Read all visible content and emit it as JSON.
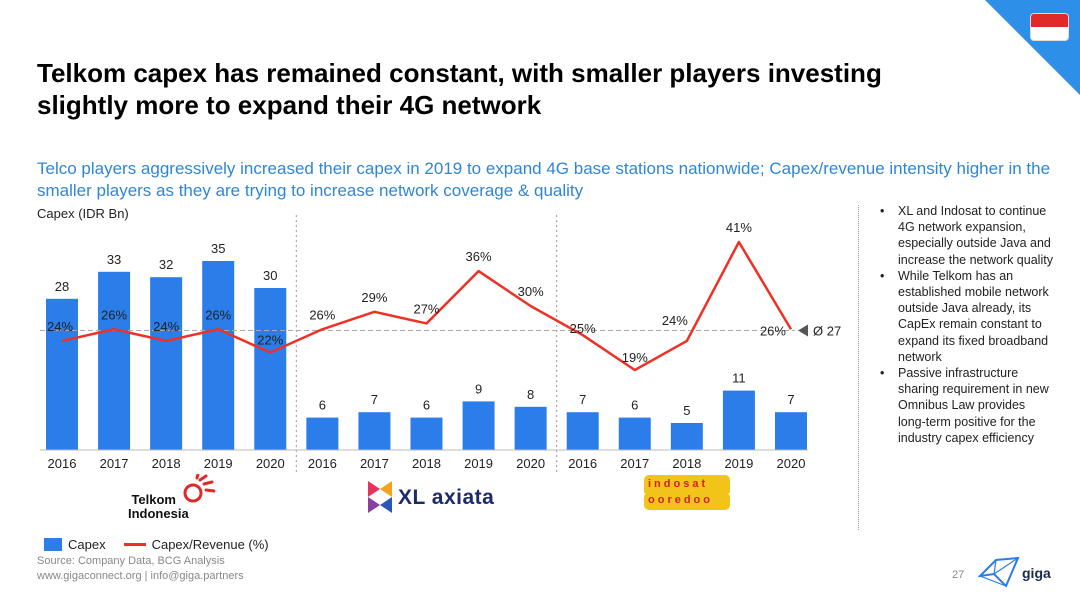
{
  "header": {
    "title": "Telkom capex has remained constant, with smaller players investing slightly more to expand their 4G network",
    "subtitle": "Telco players aggressively increased their capex in 2019 to expand 4G base stations nationwide; Capex/revenue intensity higher in the smaller players as they are trying to increase network coverage & quality"
  },
  "chart_data": {
    "type": "bar",
    "ylabel": "Capex (IDR Bn)",
    "categories": [
      "2016",
      "2017",
      "2018",
      "2019",
      "2020",
      "2016",
      "2017",
      "2018",
      "2019",
      "2020",
      "2016",
      "2017",
      "2018",
      "2019",
      "2020"
    ],
    "groups": [
      {
        "name": "Telkom Indonesia",
        "start": 0,
        "end": 4
      },
      {
        "name": "XL axiata",
        "start": 5,
        "end": 9
      },
      {
        "name": "Indosat ooredoo",
        "start": 10,
        "end": 14
      }
    ],
    "series": [
      {
        "name": "Capex",
        "type": "bar",
        "color": "#2b7de9",
        "values": [
          28,
          33,
          32,
          35,
          30,
          6,
          7,
          6,
          9,
          8,
          7,
          6,
          5,
          11,
          7
        ],
        "labels": [
          "28",
          "33",
          "32",
          "35",
          "30",
          "6",
          "7",
          "6",
          "9",
          "8",
          "7",
          "6",
          "5",
          "11",
          "7"
        ]
      },
      {
        "name": "Capex/Revenue (%)",
        "type": "line",
        "color": "#ee3124",
        "values": [
          24,
          26,
          24,
          26,
          22,
          26,
          29,
          27,
          36,
          30,
          25,
          19,
          24,
          41,
          26
        ],
        "labels": [
          "24%",
          "26%",
          "24%",
          "26%",
          "22%",
          "26%",
          "29%",
          "27%",
          "36%",
          "30%",
          "25%",
          "19%",
          "24%",
          "41%",
          "26%"
        ]
      }
    ],
    "average_line": {
      "value": 27,
      "label": "Ø 27"
    },
    "bar_max": 40,
    "line_range": [
      10,
      50
    ]
  },
  "legend": {
    "capex": "Capex",
    "ratio": "Capex/Revenue (%)"
  },
  "logos": {
    "telkom_line1": "Telkom",
    "telkom_line2": "Indonesia",
    "xl": "XL axiata",
    "indosat": "indosat",
    "ooredoo": "ooredoo"
  },
  "bullets": [
    "XL and Indosat to continue 4G network expansion, especially outside Java and increase the network quality",
    "While Telkom has an established mobile network outside Java already, its CapEx remain constant to expand its fixed broadband network",
    "Passive infrastructure sharing requirement in new Omnibus Law provides long-term positive for the industry capex efficiency"
  ],
  "footer": {
    "source": "Source: Company Data, BCG Analysis",
    "links": "www.gigaconnect.org  |  info@giga.partners",
    "page": "27",
    "brand": "giga"
  },
  "colors": {
    "accent": "#2e8fe8",
    "bar": "#2b7de9",
    "line": "#ee3124",
    "subtitle": "#2f86d6"
  },
  "flag": {
    "name": "indonesia-flag",
    "top": "#e02a2a",
    "bottom": "#ffffff"
  }
}
